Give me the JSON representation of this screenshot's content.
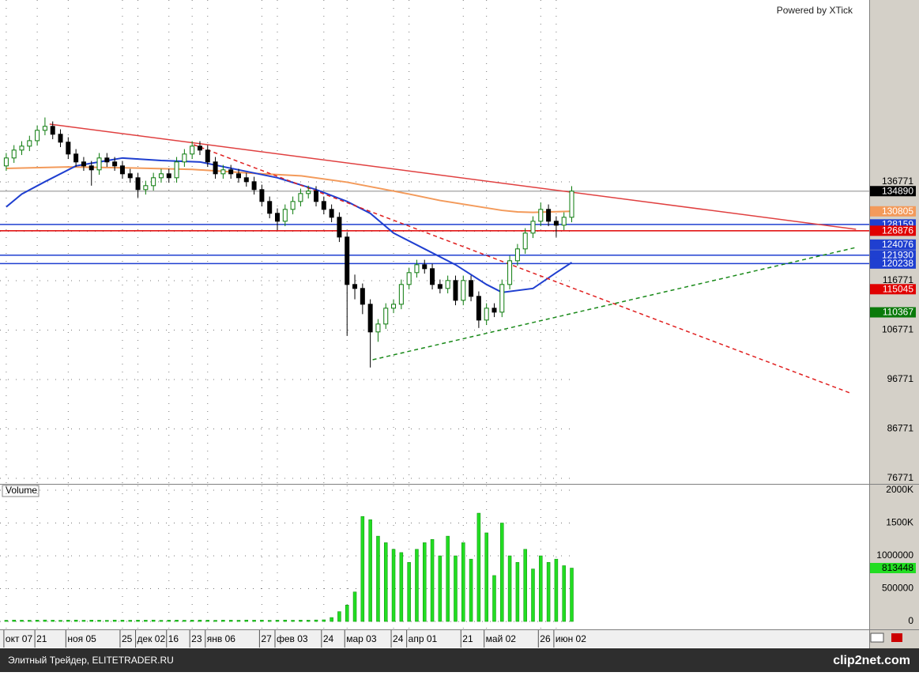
{
  "watermark": "Powered by XTick",
  "footer": {
    "text": "Элитный Трейдер, ELITETRADER.RU",
    "logo": "clip2net.com"
  },
  "chart_data": [
    {
      "type": "candlestick",
      "categories": [
        "окт 07",
        null,
        null,
        null,
        "21",
        null,
        null,
        null,
        "ноя 05",
        null,
        null,
        null,
        null,
        null,
        null,
        "25",
        null,
        "дек 02",
        null,
        null,
        null,
        "16",
        null,
        null,
        "23",
        null,
        "янв 06",
        null,
        null,
        null,
        null,
        null,
        null,
        "27",
        null,
        "фев 03",
        null,
        null,
        null,
        null,
        null,
        "24",
        null,
        null,
        "мар 03",
        null,
        null,
        null,
        null,
        null,
        "24",
        null,
        "апр 01",
        null,
        null,
        null,
        null,
        null,
        null,
        "21",
        null,
        null,
        "май 02",
        null,
        null,
        null,
        null,
        null,
        null,
        "26",
        null,
        "июн 02",
        null,
        null
      ],
      "open": [
        140000,
        141600,
        143200,
        144000,
        145100,
        147200,
        148000,
        146400,
        144800,
        142400,
        140800,
        140000,
        139200,
        141600,
        140800,
        140000,
        138400,
        137600,
        135200,
        136000,
        137600,
        138400,
        137600,
        140800,
        142400,
        144000,
        143200,
        140800,
        138400,
        139200,
        138400,
        137600,
        136800,
        135200,
        132800,
        130400,
        128800,
        131200,
        132800,
        134400,
        134900,
        132800,
        131200,
        129600,
        125600,
        116000,
        115200,
        112000,
        106400,
        108000,
        111200,
        112000,
        116000,
        118400,
        120000,
        119200,
        116000,
        115200,
        116800,
        112800,
        116800,
        113600,
        108800,
        111200,
        110400,
        116000,
        120800,
        123200,
        126400,
        128800,
        131200,
        128800,
        128000,
        129600
      ],
      "high": [
        142600,
        144200,
        145000,
        146100,
        148200,
        149800,
        149000,
        147400,
        145800,
        143400,
        141800,
        141000,
        142600,
        142600,
        141800,
        141000,
        139400,
        138600,
        137000,
        138600,
        139400,
        139400,
        141800,
        143400,
        145000,
        145000,
        144200,
        141800,
        140200,
        140200,
        139400,
        138600,
        137800,
        136200,
        133800,
        131400,
        132200,
        133800,
        135400,
        136000,
        135900,
        133800,
        132200,
        130600,
        126600,
        118000,
        116200,
        113000,
        109000,
        112200,
        113000,
        117000,
        119400,
        121000,
        121000,
        120200,
        117000,
        117800,
        117800,
        117800,
        117800,
        114600,
        112200,
        112200,
        117000,
        121800,
        124200,
        127400,
        129800,
        132600,
        132200,
        129800,
        130600,
        135900
      ],
      "low": [
        139000,
        140600,
        142200,
        143000,
        144100,
        146200,
        145400,
        143800,
        141400,
        139800,
        139000,
        136000,
        138200,
        139800,
        139000,
        137400,
        136600,
        133600,
        134200,
        135000,
        136600,
        136600,
        136600,
        139800,
        141400,
        142200,
        139800,
        137400,
        137400,
        137400,
        136600,
        135800,
        134200,
        131800,
        129400,
        127000,
        127800,
        130200,
        131800,
        133400,
        131800,
        130200,
        128600,
        124600,
        105600,
        113000,
        110000,
        99200,
        104400,
        107000,
        110200,
        111000,
        115000,
        117400,
        118200,
        115000,
        114200,
        114200,
        111800,
        111800,
        112600,
        107200,
        107800,
        109400,
        109400,
        115000,
        119800,
        122200,
        125400,
        127800,
        127800,
        125600,
        127000,
        128600
      ],
      "close": [
        141600,
        143200,
        144000,
        145100,
        147200,
        148000,
        146400,
        144800,
        142400,
        140800,
        140000,
        139200,
        141600,
        140800,
        140000,
        138400,
        137600,
        135200,
        136000,
        137600,
        138400,
        137600,
        140800,
        142400,
        144000,
        143200,
        140800,
        138400,
        139200,
        138400,
        137600,
        136800,
        135200,
        132800,
        130400,
        128800,
        131200,
        132800,
        134400,
        134900,
        132800,
        131200,
        129600,
        125600,
        116000,
        115200,
        112000,
        106400,
        108000,
        111200,
        112000,
        116000,
        118400,
        120000,
        119200,
        116000,
        115200,
        116800,
        112800,
        116800,
        113600,
        108800,
        111200,
        110400,
        116000,
        120800,
        123200,
        126400,
        128800,
        131200,
        128800,
        128000,
        129600,
        134890
      ],
      "up_color": "#0a7a0a",
      "down_color": "#000000",
      "xlim": [
        -0.5,
        111.1
      ],
      "ylim": [
        75651,
        173571
      ],
      "yticks": [
        76771,
        86771,
        96771,
        106771,
        116771,
        126771,
        136771
      ],
      "grid": true,
      "overlays": [
        {
          "color": "#f39a5a",
          "x": [
            0,
            8,
            16,
            24,
            32,
            38,
            44,
            48,
            52,
            56,
            60,
            64,
            66,
            68,
            70,
            73
          ],
          "values": [
            139500,
            139800,
            139600,
            139300,
            138500,
            138000,
            136700,
            135500,
            134300,
            133000,
            132000,
            131000,
            130700,
            130600,
            130700,
            130805
          ]
        },
        {
          "color": "#1f3fd0",
          "x": [
            0,
            2,
            5,
            9,
            15,
            20,
            25,
            30,
            35,
            40,
            44,
            47,
            50,
            54,
            58,
            62,
            64,
            68,
            71,
            73
          ],
          "values": [
            131700,
            134300,
            136800,
            140000,
            141600,
            141100,
            140800,
            139200,
            137600,
            135200,
            132800,
            130400,
            126400,
            123200,
            120000,
            116000,
            114400,
            115200,
            118400,
            120450
          ]
        }
      ],
      "trendlines": [
        {
          "color": "#e04040",
          "dashed": false,
          "x": [
            5.6,
            109.7
          ],
          "values": [
            148451,
            127171
          ]
        },
        {
          "color": "#e02020",
          "dashed": true,
          "x": [
            24.2,
            109.2
          ],
          "values": [
            144291,
            93891
          ]
        },
        {
          "color": "#1a8a1a",
          "dashed": true,
          "x": [
            47.3,
            109.7
          ],
          "values": [
            100771,
            123491
          ]
        }
      ],
      "price_markers": [
        {
          "value": 134890,
          "color": "#000000",
          "line": true,
          "line_color": "#b0b0b0"
        },
        {
          "value": 130805,
          "color": "#f39a5a",
          "line": false
        },
        {
          "value": 128159,
          "color": "#1f3fd0",
          "line": true,
          "line_color": "#1f3fd0"
        },
        {
          "value": 126876,
          "color": "#e00000",
          "line": true,
          "line_color": "#e00000"
        },
        {
          "value": 124076,
          "color": "#1f3fd0",
          "line": false
        },
        {
          "value": 121930,
          "color": "#1f3fd0",
          "line": true,
          "line_color": "#1f3fd0"
        },
        {
          "value": 120238,
          "color": "#1f3fd0",
          "line": true,
          "line_color": "#1f3fd0"
        },
        {
          "value": 115045,
          "color": "#e00000",
          "line": false
        },
        {
          "value": 110367,
          "color": "#0a7a0a",
          "line": false
        }
      ]
    },
    {
      "type": "bar",
      "title": "Volume",
      "values": [
        18000,
        22000,
        20000,
        19000,
        21000,
        23000,
        20000,
        18000,
        20000,
        22000,
        19000,
        21000,
        20000,
        18000,
        22000,
        20000,
        19000,
        21000,
        20000,
        22000,
        18000,
        20000,
        21000,
        19000,
        20000,
        22000,
        20000,
        18000,
        21000,
        20000,
        19000,
        22000,
        20000,
        21000,
        18000,
        20000,
        22000,
        19000,
        21000,
        20000,
        23000,
        25000,
        60000,
        150000,
        250000,
        450000,
        1600000,
        1550000,
        1300000,
        1200000,
        1100000,
        1050000,
        900000,
        1100000,
        1200000,
        1250000,
        1000000,
        1300000,
        1000000,
        1200000,
        950000,
        1650000,
        1350000,
        700000,
        1500000,
        1000000,
        900000,
        1100000,
        800000,
        1000000,
        900000,
        950000,
        850000,
        813448
      ],
      "color": "#22dd22",
      "ylim": [
        -108000,
        2072000
      ],
      "yticks": [
        {
          "value": 2000000,
          "label": "2000K"
        },
        {
          "value": 1500000,
          "label": "1500K"
        },
        1000000,
        500000,
        0
      ],
      "grid": true,
      "value_markers": [
        {
          "value": 813448,
          "color": "#22dd22"
        }
      ]
    }
  ]
}
